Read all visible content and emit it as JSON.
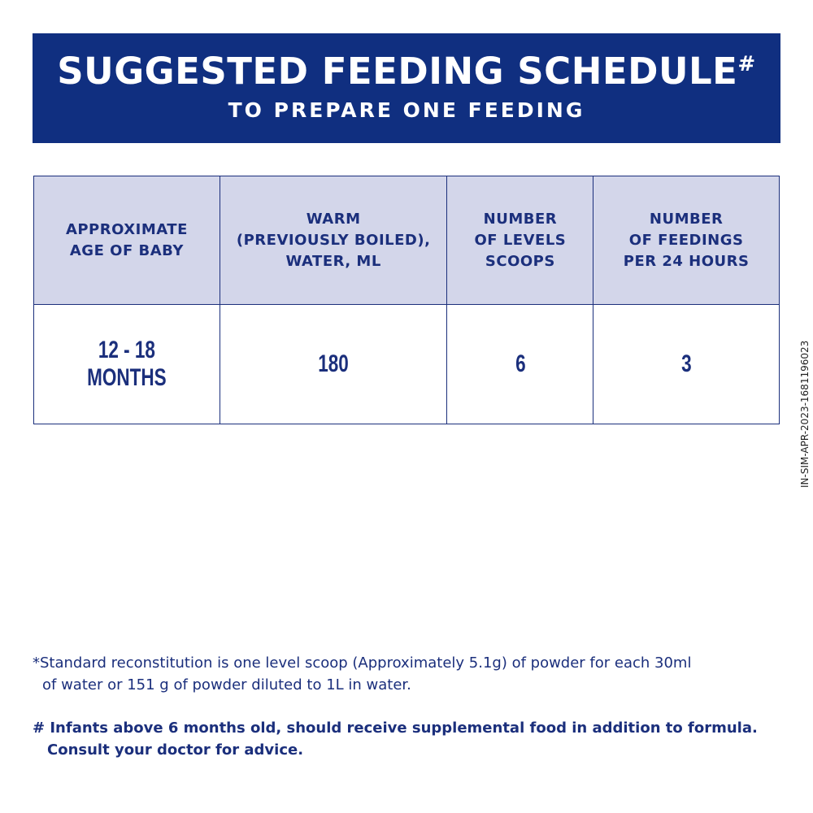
{
  "header": {
    "title": "SUGGESTED FEEDING SCHEDULE",
    "title_mark": "#",
    "subtitle": "TO PREPARE ONE FEEDING"
  },
  "table": {
    "columns": [
      [
        "APPROXIMATE",
        "AGE OF BABY"
      ],
      [
        "WARM",
        "(PREVIOUSLY BOILED),",
        "WATER, ML"
      ],
      [
        "NUMBER",
        "OF LEVELS",
        "SCOOPS"
      ],
      [
        "NUMBER",
        "OF FEEDINGS",
        "PER 24 HOURS"
      ]
    ],
    "rows": [
      [
        "12 - 18 MONTHS",
        180,
        6,
        3
      ]
    ]
  },
  "footnotes": [
    [
      "*Standard reconstitution is one level scoop (Approximately 5.1g) of powder for each 30ml",
      "of water or 151 g of powder diluted to 1L in water."
    ],
    [
      "# Infants above 6 months old, should receive supplemental food in addition to formula.",
      "Consult your doctor for advice."
    ]
  ],
  "side_code": "IN-SIM-APR-2023-1681196023"
}
